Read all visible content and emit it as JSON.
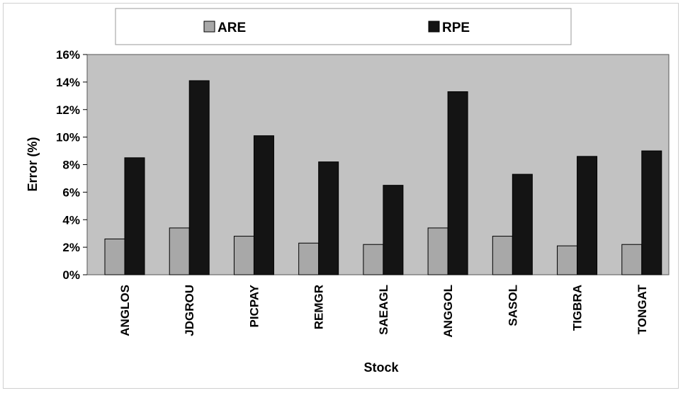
{
  "chart_data": {
    "type": "bar",
    "categories": [
      "ANGLOS",
      "JDGROU",
      "PICPAY",
      "REMGR",
      "SAEAGL",
      "ANGGOL",
      "SASOL",
      "TIGBRA",
      "TONGAT"
    ],
    "series": [
      {
        "name": "ARE",
        "color": "#a8a8a8",
        "values": [
          2.6,
          3.4,
          2.8,
          2.3,
          2.2,
          3.4,
          2.8,
          2.1,
          2.2
        ]
      },
      {
        "name": "RPE",
        "color": "#141414",
        "values": [
          8.5,
          14.1,
          10.1,
          8.2,
          6.5,
          13.3,
          7.3,
          8.6,
          9.0
        ]
      }
    ],
    "title": "",
    "xlabel": "Stock",
    "ylabel": "Error (%)",
    "ylim": [
      0,
      16
    ],
    "yticks": [
      0,
      2,
      4,
      6,
      8,
      10,
      12,
      14,
      16
    ],
    "ytick_labels": [
      "0%",
      "2%",
      "4%",
      "6%",
      "8%",
      "10%",
      "12%",
      "14%",
      "16%"
    ],
    "grid": false,
    "legend_position": "top",
    "plot_background": "#c2c2c2"
  }
}
